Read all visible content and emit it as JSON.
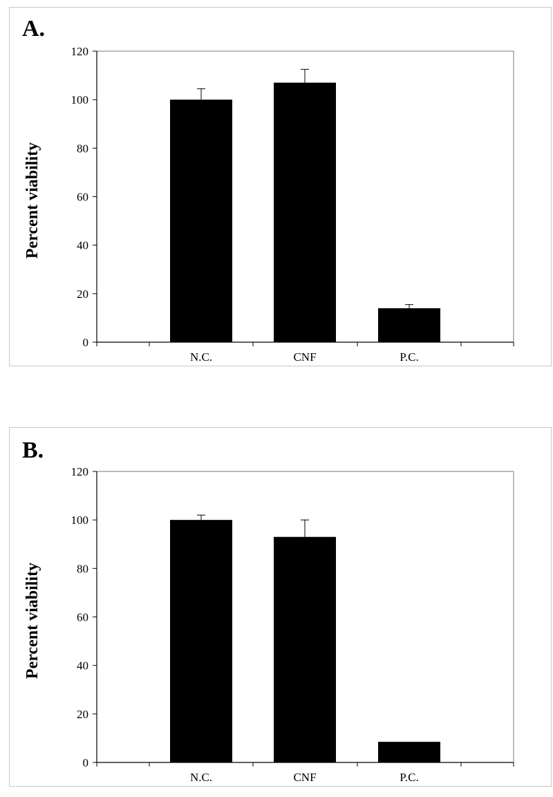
{
  "chart_data": [
    {
      "type": "bar",
      "panel_label": "A.",
      "categories": [
        "N.C.",
        "CNF",
        "P.C."
      ],
      "values": [
        100,
        107,
        14
      ],
      "errors": [
        4.5,
        5.5,
        1.5
      ],
      "ylabel": "Percent viability",
      "ylim": [
        0,
        120
      ],
      "yticks": [
        0,
        20,
        40,
        60,
        80,
        100,
        120
      ],
      "grid": false,
      "bar_color": "#000000"
    },
    {
      "type": "bar",
      "panel_label": "B.",
      "categories": [
        "N.C.",
        "CNF",
        "P.C."
      ],
      "values": [
        100,
        93,
        8.5
      ],
      "errors": [
        2,
        7,
        0
      ],
      "ylabel": "Percent viability",
      "ylim": [
        0,
        120
      ],
      "yticks": [
        0,
        20,
        40,
        60,
        80,
        100,
        120
      ],
      "grid": false,
      "bar_color": "#000000"
    }
  ]
}
